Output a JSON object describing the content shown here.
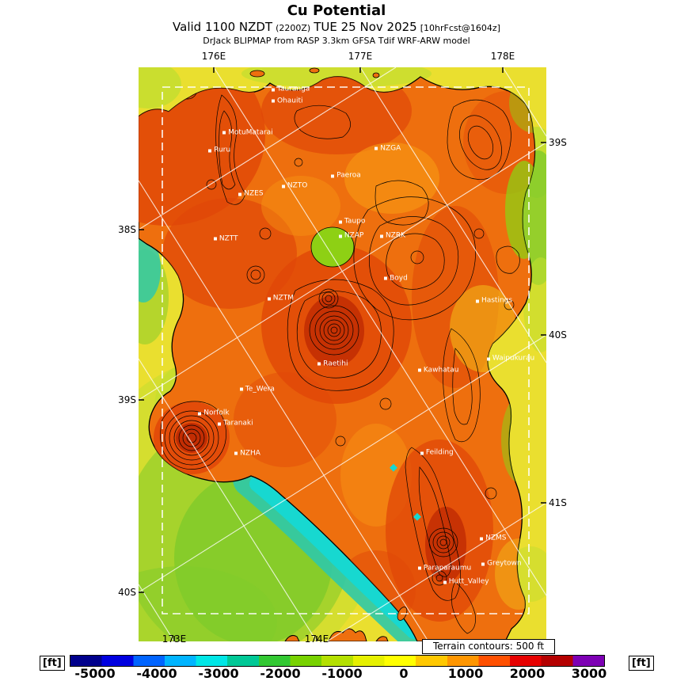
{
  "header": {
    "title": "Cu Potential",
    "valid_prefix": "Valid 1100 NZDT",
    "valid_zulu": "(2200Z)",
    "valid_date": "TUE 25 Nov 2025",
    "valid_fcst": "[10hrFcst@1604z]",
    "model_line": "DrJack BLIPMAP from RASP 3.3km GFSA Tdif WRF-ARW model"
  },
  "axes": {
    "lon_top": [
      {
        "label": "176E",
        "x_pct": 18.45
      },
      {
        "label": "177E",
        "x_pct": 54.37
      },
      {
        "label": "178E",
        "x_pct": 89.32
      }
    ],
    "lon_bottom": [
      {
        "label": "173E",
        "x_pct": 8.74
      },
      {
        "label": "174E",
        "x_pct": 43.69
      }
    ],
    "lat_left": [
      {
        "label": "38S",
        "y_pct": 28.28
      },
      {
        "label": "39S",
        "y_pct": 57.93
      },
      {
        "label": "40S",
        "y_pct": 91.45
      }
    ],
    "lat_right": [
      {
        "label": "39S",
        "y_pct": 13.1
      },
      {
        "label": "40S",
        "y_pct": 46.62
      },
      {
        "label": "41S",
        "y_pct": 75.86
      }
    ]
  },
  "colorbar": {
    "unit_label": "[ft]"
  },
  "terrain_note": "Terrain contours: 500 ft",
  "palette": {
    "sea": "#eadf2f",
    "seaLight": "#c2dd2f",
    "seaGreen": "#7fcb2a",
    "seaTeal": "#2fc9a8",
    "seaCyan": "#17d8d0",
    "land": "#ee6f0e",
    "landRed": "#e04708",
    "landDarkRed": "#c22d03",
    "landLight": "#f79413",
    "landYellow": "#f2b818",
    "landGreen": "#8ed014",
    "grid": "#ffffff",
    "contour": "#000000"
  },
  "chart_data": {
    "type": "heatmap",
    "title": "Cu Potential",
    "valid_line": "Valid 1100 NZDT (2200Z) TUE 25 Nov 2025 [10hrFcst@1604z]",
    "model_line": "DrJack BLIPMAP from RASP 3.3km GFSA Tdif WRF-ARW model",
    "units": "ft",
    "legend_position": "bottom",
    "colorbar_ticks": [
      -5000,
      -4000,
      -3000,
      -2000,
      -1000,
      0,
      1000,
      2000,
      3000
    ],
    "colorbar_colors": [
      "#00008c",
      "#0000e0",
      "#0064ff",
      "#00b4ff",
      "#00e6e6",
      "#00c896",
      "#32c832",
      "#78d200",
      "#b4e000",
      "#e6f000",
      "#ffff00",
      "#ffc800",
      "#ff9600",
      "#ff5000",
      "#e60000",
      "#b40000",
      "#7d00b4"
    ],
    "geo_labels": {
      "lon_top": [
        "176E",
        "177E",
        "178E"
      ],
      "lon_bottom": [
        "173E",
        "174E"
      ],
      "lat_left": [
        "38S",
        "39S",
        "40S"
      ],
      "lat_right": [
        "39S",
        "40S",
        "41S"
      ]
    },
    "terrain_contours_note": "Terrain contours: 500 ft",
    "field_summary": "Cu Potential mostly 1000-2500 ft (orange/red) over North Island land; near 0 (yellow) over open sea; negative (green/teal/cyan) over Tasman Sea southwest of Taranaki and the South Taranaki Bight coast",
    "stations": [
      {
        "name": "Tauranga",
        "x_pct": 33.0,
        "y_pct": 3.9
      },
      {
        "name": "Ohauiti",
        "x_pct": 33.0,
        "y_pct": 5.9
      },
      {
        "name": "MotuMatarai",
        "x_pct": 21.0,
        "y_pct": 11.4
      },
      {
        "name": "Ruru",
        "x_pct": 17.5,
        "y_pct": 14.5
      },
      {
        "name": "NZGA",
        "x_pct": 58.3,
        "y_pct": 14.2
      },
      {
        "name": "Paeroa",
        "x_pct": 47.6,
        "y_pct": 18.9
      },
      {
        "name": "NZTO",
        "x_pct": 35.5,
        "y_pct": 20.7
      },
      {
        "name": "NZES",
        "x_pct": 24.9,
        "y_pct": 22.1
      },
      {
        "name": "Taupo",
        "x_pct": 49.5,
        "y_pct": 26.9
      },
      {
        "name": "NZAP",
        "x_pct": 49.5,
        "y_pct": 29.4
      },
      {
        "name": "NZRK",
        "x_pct": 59.6,
        "y_pct": 29.4
      },
      {
        "name": "NZTT",
        "x_pct": 18.8,
        "y_pct": 29.9
      },
      {
        "name": "Boyd",
        "x_pct": 60.6,
        "y_pct": 36.8
      },
      {
        "name": "NZTM",
        "x_pct": 32.0,
        "y_pct": 40.3
      },
      {
        "name": "Hastings",
        "x_pct": 83.1,
        "y_pct": 40.7
      },
      {
        "name": "Raetihi",
        "x_pct": 44.3,
        "y_pct": 51.7
      },
      {
        "name": "Waipukurau",
        "x_pct": 85.8,
        "y_pct": 50.8
      },
      {
        "name": "Kawhatau",
        "x_pct": 68.9,
        "y_pct": 52.8
      },
      {
        "name": "Te_Wera",
        "x_pct": 25.2,
        "y_pct": 56.1
      },
      {
        "name": "Norfolk",
        "x_pct": 15.0,
        "y_pct": 60.3
      },
      {
        "name": "Taranaki",
        "x_pct": 19.8,
        "y_pct": 62.1
      },
      {
        "name": "NZHA",
        "x_pct": 23.9,
        "y_pct": 67.3
      },
      {
        "name": "Feilding",
        "x_pct": 69.5,
        "y_pct": 67.2
      },
      {
        "name": "NZMS",
        "x_pct": 84.1,
        "y_pct": 82.1
      },
      {
        "name": "Greytown",
        "x_pct": 84.5,
        "y_pct": 86.5
      },
      {
        "name": "Paraparaumu",
        "x_pct": 68.9,
        "y_pct": 87.3
      },
      {
        "name": "Hutt_Valley",
        "x_pct": 75.1,
        "y_pct": 89.7
      }
    ]
  }
}
